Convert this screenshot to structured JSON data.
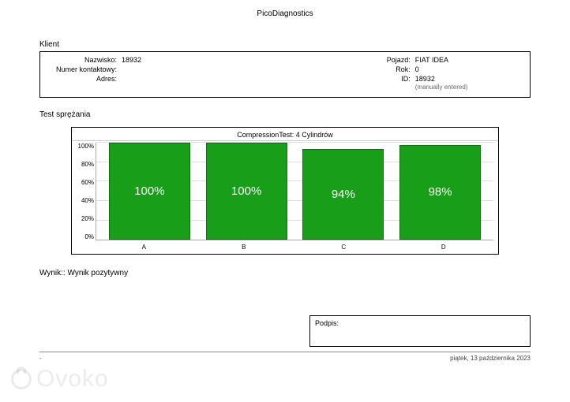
{
  "doc_title": "PicoDiagnostics",
  "client": {
    "section": "Klient",
    "labels": {
      "name": "Nazwisko:",
      "contact": "Numer kontaktowy:",
      "address": "Adres:",
      "vehicle": "Pojazd:",
      "year": "Rok:",
      "id": "ID:"
    },
    "values": {
      "name": "18932",
      "contact": "",
      "address": "",
      "vehicle": "FIAT IDEA",
      "year": "0",
      "id": "18932"
    },
    "note": "(manually entered)"
  },
  "test_section_label": "Test sprężania",
  "chart": {
    "type": "bar",
    "title": "CompressionTest: 4 Cylindrów",
    "categories": [
      "A",
      "B",
      "C",
      "D"
    ],
    "values": [
      100,
      100,
      94,
      98
    ],
    "value_labels": [
      "100%",
      "100%",
      "94%",
      "98%"
    ],
    "bar_color": "#189e18",
    "bar_border": "#107010",
    "label_color": "#ffffff",
    "label_fontsize": 15,
    "ylim": [
      0,
      100
    ],
    "ytick_step": 20,
    "yticks": [
      "100%",
      "80%",
      "60%",
      "40%",
      "20%",
      "0%"
    ],
    "grid_color": "#dddddd",
    "background_color": "#ffffff",
    "bar_width_pct": 21
  },
  "result": {
    "label": "Wynik::",
    "text": "Wynik pozytywny"
  },
  "signature_label": "Podpis:",
  "footer": {
    "left": "-",
    "right": "piątek, 13 października 2023"
  },
  "watermark_text": "Ovoko"
}
